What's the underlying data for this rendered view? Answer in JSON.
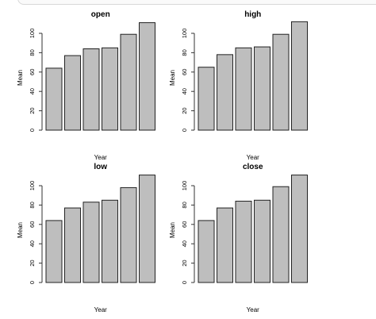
{
  "chart_data": [
    {
      "type": "bar",
      "title": "open",
      "xlabel": "Year",
      "ylabel": "Mean",
      "ylim": [
        0,
        110
      ],
      "yticks": [
        0,
        20,
        40,
        60,
        80,
        100
      ],
      "categories": [
        "",
        "",
        "",
        "",
        "",
        ""
      ],
      "values": [
        64,
        77,
        84,
        85,
        99,
        111
      ],
      "bar_color": "#bebebe",
      "grid": false
    },
    {
      "type": "bar",
      "title": "high",
      "xlabel": "Year",
      "ylabel": "Mean",
      "ylim": [
        0,
        110
      ],
      "yticks": [
        0,
        20,
        40,
        60,
        80,
        100
      ],
      "categories": [
        "",
        "",
        "",
        "",
        "",
        ""
      ],
      "values": [
        65,
        78,
        85,
        86,
        99,
        112
      ],
      "bar_color": "#bebebe",
      "grid": false
    },
    {
      "type": "bar",
      "title": "low",
      "xlabel": "Year",
      "ylabel": "Mean",
      "ylim": [
        0,
        110
      ],
      "yticks": [
        0,
        20,
        40,
        60,
        80,
        100
      ],
      "categories": [
        "",
        "",
        "",
        "",
        "",
        ""
      ],
      "values": [
        64,
        77,
        83,
        85,
        98,
        111
      ],
      "bar_color": "#bebebe",
      "grid": false
    },
    {
      "type": "bar",
      "title": "close",
      "xlabel": "Year",
      "ylabel": "Mean",
      "ylim": [
        0,
        110
      ],
      "yticks": [
        0,
        20,
        40,
        60,
        80,
        100
      ],
      "categories": [
        "",
        "",
        "",
        "",
        "",
        ""
      ],
      "values": [
        64,
        77,
        84,
        85,
        99,
        111
      ],
      "bar_color": "#bebebe",
      "grid": false
    }
  ]
}
